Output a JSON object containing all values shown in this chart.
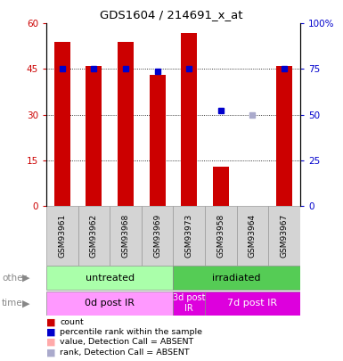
{
  "title": "GDS1604 / 214691_x_at",
  "samples": [
    "GSM93961",
    "GSM93962",
    "GSM93968",
    "GSM93969",
    "GSM93973",
    "GSM93958",
    "GSM93964",
    "GSM93967"
  ],
  "bar_values": [
    54,
    46,
    54,
    43,
    57,
    13,
    0,
    46
  ],
  "bar_colors": [
    "#cc0000",
    "#cc0000",
    "#cc0000",
    "#cc0000",
    "#cc0000",
    "#cc0000",
    "#ffaaaa",
    "#cc0000"
  ],
  "rank_values": [
    75,
    75,
    75,
    74,
    75,
    52,
    50,
    75
  ],
  "rank_colors": [
    "#0000cc",
    "#0000cc",
    "#0000cc",
    "#0000cc",
    "#0000cc",
    "#0000cc",
    "#aaaacc",
    "#0000cc"
  ],
  "ylim_left": [
    0,
    60
  ],
  "ylim_right": [
    0,
    100
  ],
  "yticks_left": [
    0,
    15,
    30,
    45,
    60
  ],
  "yticks_right": [
    0,
    25,
    50,
    75,
    100
  ],
  "ytick_labels_right": [
    "0",
    "25",
    "50",
    "75",
    "100%"
  ],
  "group_other": [
    {
      "label": "untreated",
      "start": 0,
      "end": 4,
      "color": "#aaffaa"
    },
    {
      "label": "irradiated",
      "start": 4,
      "end": 8,
      "color": "#55cc55"
    }
  ],
  "group_time": [
    {
      "label": "0d post IR",
      "start": 0,
      "end": 4,
      "color": "#ff99ff"
    },
    {
      "label": "3d post\nIR",
      "start": 4,
      "end": 5,
      "color": "#dd00dd"
    },
    {
      "label": "7d post IR",
      "start": 5,
      "end": 8,
      "color": "#dd00dd"
    }
  ],
  "legend_items": [
    {
      "label": "count",
      "color": "#cc0000"
    },
    {
      "label": "percentile rank within the sample",
      "color": "#0000cc"
    },
    {
      "label": "value, Detection Call = ABSENT",
      "color": "#ffaaaa"
    },
    {
      "label": "rank, Detection Call = ABSENT",
      "color": "#aaaacc"
    }
  ],
  "bar_width": 0.5,
  "rank_marker_size": 5,
  "background_color": "#ffffff",
  "axis_label_color_left": "#cc0000",
  "axis_label_color_right": "#0000cc"
}
